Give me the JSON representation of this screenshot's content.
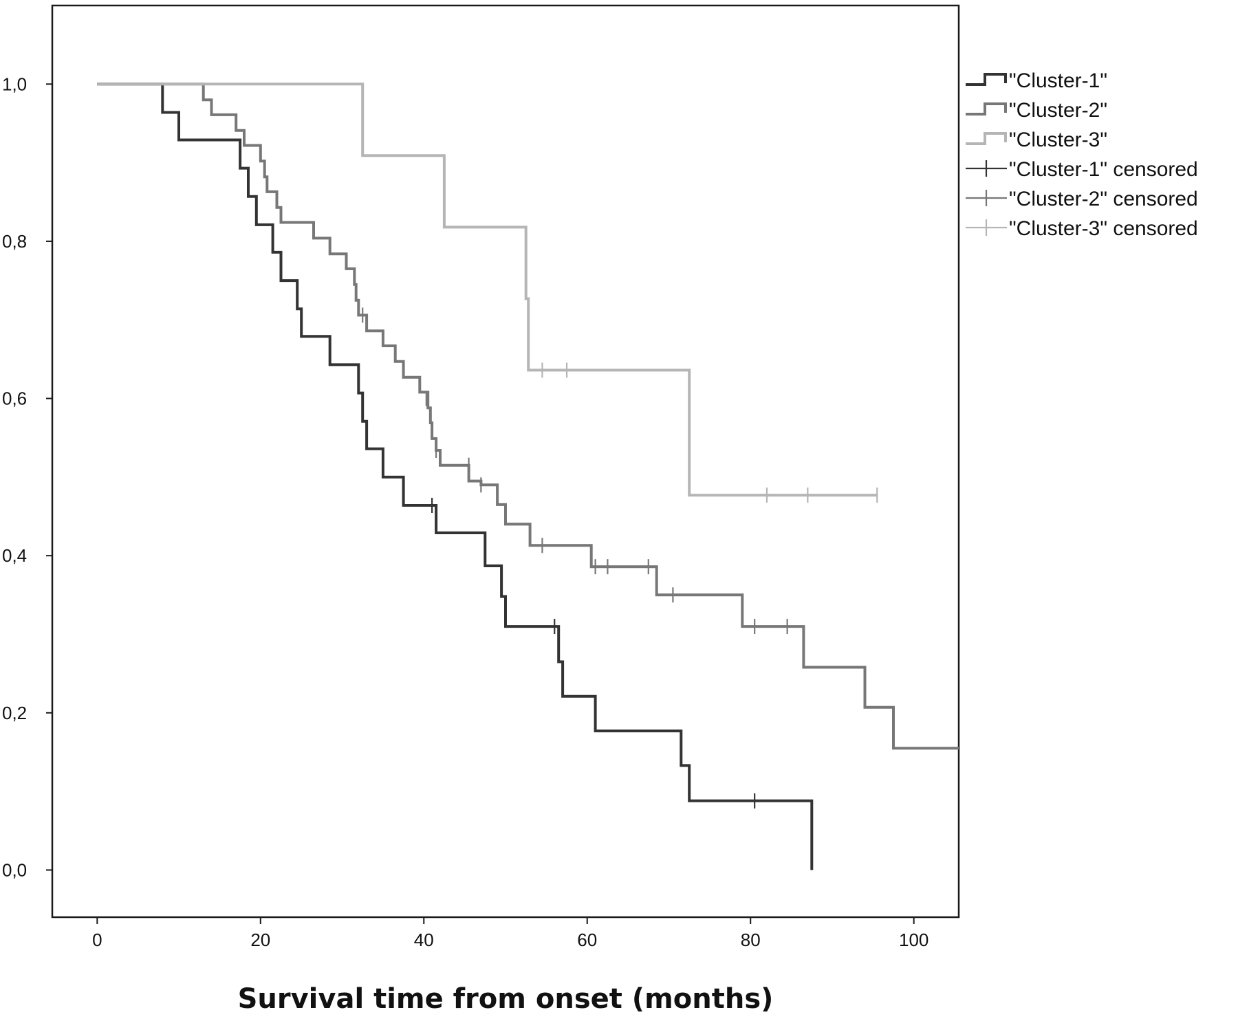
{
  "chart_data": {
    "type": "line",
    "subtype": "kaplan-meier-step",
    "title": "",
    "xlabel": "Survival time from onset (months)",
    "ylabel": "",
    "xlim": [
      -5.5,
      105.5
    ],
    "ylim": [
      -0.06,
      1.1
    ],
    "x_ticks": [
      0,
      20,
      40,
      60,
      80,
      100
    ],
    "x_tick_labels": [
      "0",
      "20",
      "40",
      "60",
      "80",
      "100"
    ],
    "y_ticks": [
      0.0,
      0.2,
      0.4,
      0.6,
      0.8,
      1.0
    ],
    "y_tick_labels": [
      "0,0",
      "0,2",
      "0,4",
      "0,6",
      "0,8",
      "1,0"
    ],
    "grid": false,
    "legend_position": "right",
    "legend": [
      {
        "label": "\"Cluster-1\"",
        "series": 0,
        "kind": "line"
      },
      {
        "label": "\"Cluster-2\"",
        "series": 1,
        "kind": "line"
      },
      {
        "label": "\"Cluster-3\"",
        "series": 2,
        "kind": "line"
      },
      {
        "label": "\"Cluster-1\" censored",
        "series": 0,
        "kind": "censor"
      },
      {
        "label": "\"Cluster-2\" censored",
        "series": 1,
        "kind": "censor"
      },
      {
        "label": "\"Cluster-3\" censored",
        "series": 2,
        "kind": "censor"
      }
    ],
    "series": [
      {
        "name": "\"Cluster-1\"",
        "color": "#333333",
        "steps": [
          [
            0,
            1.0
          ],
          [
            8,
            0.964
          ],
          [
            10,
            0.929
          ],
          [
            17.5,
            0.893
          ],
          [
            18.5,
            0.857
          ],
          [
            19.5,
            0.821
          ],
          [
            21.5,
            0.786
          ],
          [
            22.5,
            0.75
          ],
          [
            24.5,
            0.714
          ],
          [
            25,
            0.679
          ],
          [
            28.5,
            0.643
          ],
          [
            32,
            0.607
          ],
          [
            32.5,
            0.571
          ],
          [
            33,
            0.536
          ],
          [
            35,
            0.5
          ],
          [
            37.5,
            0.464
          ],
          [
            41.5,
            0.429
          ],
          [
            47.5,
            0.387
          ],
          [
            49.5,
            0.348
          ],
          [
            50,
            0.31
          ],
          [
            56.5,
            0.265
          ],
          [
            57,
            0.221
          ],
          [
            61,
            0.177
          ],
          [
            71.5,
            0.133
          ],
          [
            72.5,
            0.088
          ],
          [
            87.5,
            0.0
          ]
        ],
        "end_x": 87.5,
        "censored": [
          [
            41,
            0.464
          ],
          [
            56,
            0.31
          ],
          [
            80.5,
            0.088
          ]
        ]
      },
      {
        "name": "\"Cluster-2\"",
        "color": "#777777",
        "steps": [
          [
            0,
            1.0
          ],
          [
            13,
            0.98
          ],
          [
            14,
            0.961
          ],
          [
            17,
            0.941
          ],
          [
            18,
            0.922
          ],
          [
            20,
            0.902
          ],
          [
            20.5,
            0.882
          ],
          [
            20.8,
            0.863
          ],
          [
            22,
            0.843
          ],
          [
            22.5,
            0.824
          ],
          [
            26.5,
            0.804
          ],
          [
            28.5,
            0.784
          ],
          [
            30.5,
            0.765
          ],
          [
            31.5,
            0.745
          ],
          [
            31.7,
            0.725
          ],
          [
            32,
            0.706
          ],
          [
            33,
            0.686
          ],
          [
            35,
            0.667
          ],
          [
            36.5,
            0.647
          ],
          [
            37.5,
            0.627
          ],
          [
            39.5,
            0.608
          ],
          [
            40.5,
            0.588
          ],
          [
            40.8,
            0.569
          ],
          [
            41,
            0.549
          ],
          [
            41.5,
            0.534
          ],
          [
            42,
            0.515
          ],
          [
            45.5,
            0.495
          ],
          [
            47,
            0.49
          ],
          [
            49,
            0.465
          ],
          [
            50,
            0.44
          ],
          [
            53,
            0.413
          ],
          [
            60.5,
            0.386
          ],
          [
            68.5,
            0.35
          ],
          [
            79,
            0.31
          ],
          [
            86.5,
            0.258
          ],
          [
            94,
            0.207
          ],
          [
            97.5,
            0.155
          ]
        ],
        "end_x": 105.5,
        "censored": [
          [
            32.5,
            0.706
          ],
          [
            40.3,
            0.6
          ],
          [
            41.5,
            0.534
          ],
          [
            45.5,
            0.515
          ],
          [
            47,
            0.49
          ],
          [
            54.5,
            0.413
          ],
          [
            61,
            0.386
          ],
          [
            62.5,
            0.386
          ],
          [
            67.5,
            0.386
          ],
          [
            70.5,
            0.35
          ],
          [
            80.5,
            0.31
          ],
          [
            84.5,
            0.31
          ]
        ]
      },
      {
        "name": "\"Cluster-3\"",
        "color": "#b5b5b5",
        "steps": [
          [
            0,
            1.0
          ],
          [
            32.5,
            0.909
          ],
          [
            42.5,
            0.818
          ],
          [
            52.5,
            0.727
          ],
          [
            52.8,
            0.636
          ],
          [
            72.5,
            0.477
          ]
        ],
        "end_x": 95.5,
        "censored": [
          [
            54.5,
            0.636
          ],
          [
            57.5,
            0.636
          ],
          [
            82,
            0.477
          ],
          [
            87,
            0.477
          ],
          [
            95.5,
            0.477
          ]
        ]
      }
    ]
  }
}
